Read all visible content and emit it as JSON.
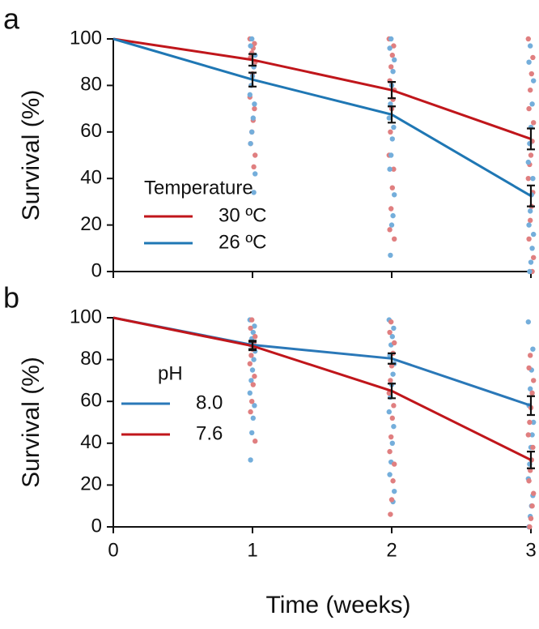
{
  "chart_data": [
    {
      "type": "line",
      "panel_label": "a",
      "ylabel": "Survival (%)",
      "x": [
        0,
        1,
        2,
        3
      ],
      "xlim": [
        0,
        3
      ],
      "xticks": [
        0,
        1,
        2,
        3
      ],
      "xtick_labels": false,
      "ylim": [
        0,
        100
      ],
      "yticks": [
        0,
        20,
        40,
        60,
        80,
        100
      ],
      "legend_title": "Temperature",
      "series": [
        {
          "name": "30 ºC",
          "color": "#c0161b",
          "point_color": "#e07f80",
          "values": [
            100,
            91,
            78,
            57
          ],
          "errors": [
            null,
            2.5,
            3.5,
            4.5
          ],
          "points": [
            [],
            [
              100,
              98,
              96,
              94,
              92,
              90,
              88,
              85,
              80,
              75,
              70,
              65,
              60,
              55,
              50,
              45
            ],
            [
              100,
              97,
              93,
              88,
              82,
              78,
              74,
              70,
              60,
              50,
              44,
              36,
              27,
              18,
              14
            ],
            [
              100,
              92,
              85,
              78,
              70,
              64,
              56,
              50,
              46,
              40,
              34,
              28,
              22,
              14,
              6,
              0
            ]
          ]
        },
        {
          "name": "26 ºC",
          "color": "#1f77b4",
          "point_color": "#74aedb",
          "values": [
            100,
            82.5,
            67.5,
            32.5
          ],
          "errors": [
            null,
            3,
            3.5,
            4.5
          ],
          "points": [
            [],
            [
              100,
              97,
              93,
              88,
              84,
              80,
              76,
              72,
              66,
              60,
              55,
              42,
              34
            ],
            [
              100,
              96,
              91,
              86,
              80,
              72,
              66,
              62,
              57,
              50,
              44,
              33,
              24,
              20,
              7
            ],
            [
              97,
              90,
              82,
              72,
              62,
              55,
              47,
              40,
              33,
              26,
              20,
              16,
              10,
              4,
              0
            ]
          ]
        }
      ]
    },
    {
      "type": "line",
      "panel_label": "b",
      "ylabel": "Survival (%)",
      "xlabel": "Time (weeks)",
      "x": [
        0,
        1,
        2,
        3
      ],
      "xlim": [
        0,
        3
      ],
      "xticks": [
        0,
        1,
        2,
        3
      ],
      "xtick_labels": true,
      "ylim": [
        0,
        100
      ],
      "yticks": [
        0,
        20,
        40,
        60,
        80,
        100
      ],
      "legend_title": "pH",
      "series": [
        {
          "name": "8.0",
          "color": "#2a78b8",
          "point_color": "#74aedb",
          "values": [
            100,
            87,
            80.5,
            58
          ],
          "errors": [
            null,
            2,
            2.5,
            4.5
          ],
          "points": [
            [],
            [
              99,
              96,
              93,
              90,
              87,
              84,
              80,
              75,
              70,
              64,
              58,
              52,
              45,
              32
            ],
            [
              99,
              95,
              91,
              87,
              82,
              78,
              73,
              68,
              62,
              55,
              48,
              40,
              31,
              25,
              17,
              12
            ],
            [
              98,
              85,
              75,
              66,
              58,
              50,
              44,
              38,
              30,
              23,
              15,
              10,
              5,
              0
            ]
          ]
        },
        {
          "name": "7.6",
          "color": "#c0161b",
          "point_color": "#e07f80",
          "values": [
            100,
            86.5,
            65,
            32
          ],
          "errors": [
            null,
            2,
            3.5,
            4
          ],
          "points": [
            [],
            [
              99,
              95,
              91,
              88,
              85,
              82,
              78,
              72,
              68,
              60,
              55,
              41
            ],
            [
              98,
              93,
              88,
              83,
              77,
              70,
              64,
              58,
              52,
              43,
              36,
              30,
              22,
              13,
              6
            ],
            [
              82,
              76,
              70,
              64,
              57,
              50,
              44,
              38,
              32,
              27,
              22,
              16,
              10,
              4,
              0
            ]
          ]
        }
      ]
    }
  ]
}
